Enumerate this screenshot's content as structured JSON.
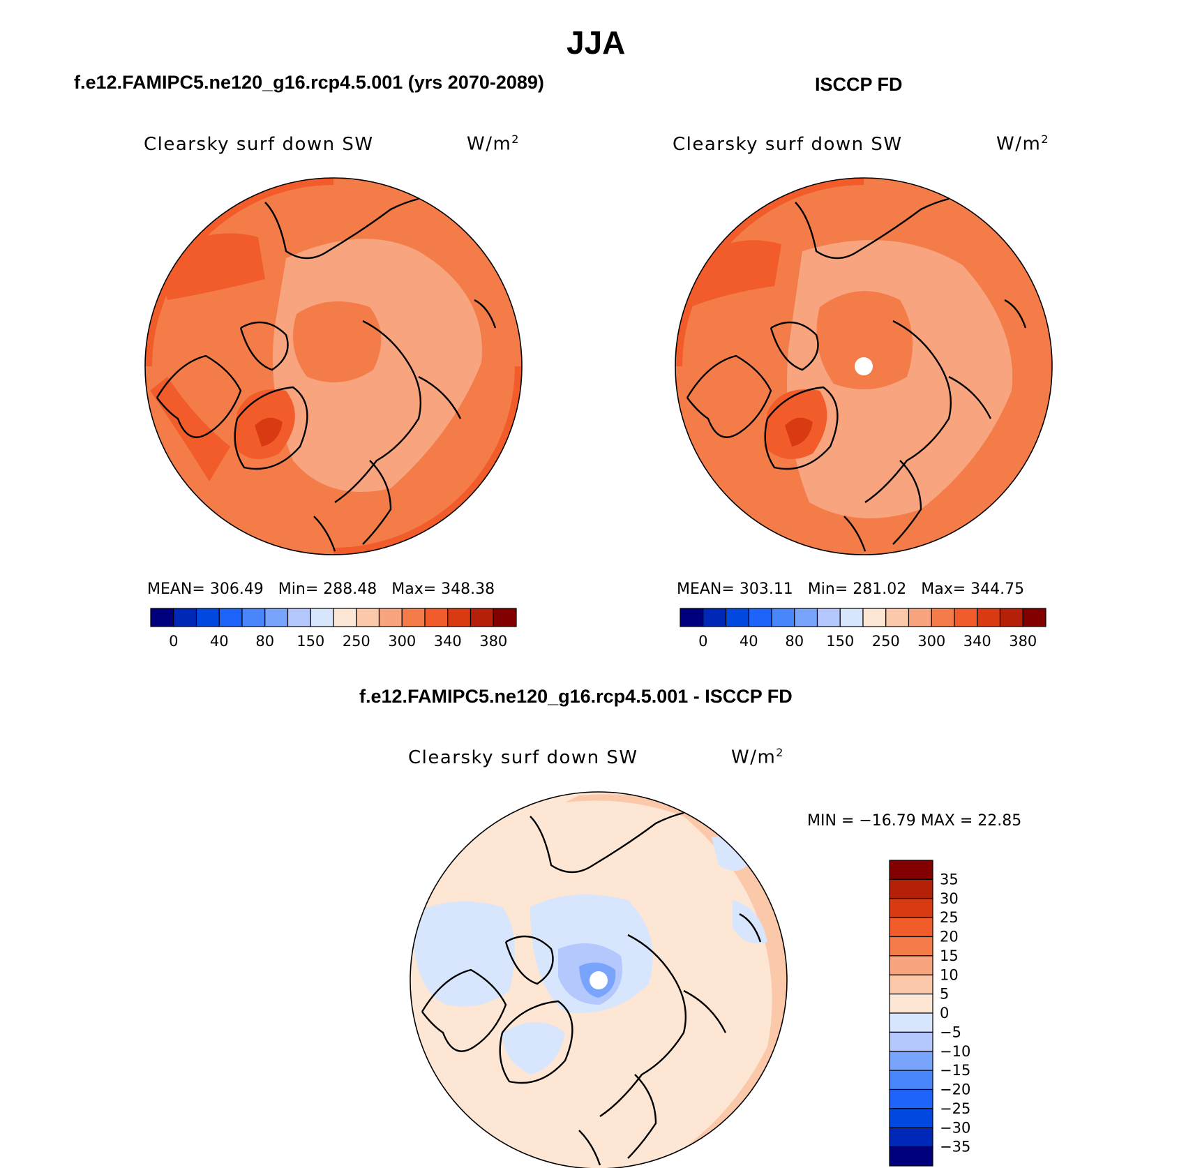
{
  "figure_title": "JJA",
  "panels": {
    "model": {
      "title": "f.e12.FAMIPC5.ne120_g16.rcp4.5.001 (yrs 2070-2089)",
      "variable": "Clearsky surf down SW",
      "units": "W/m",
      "units_sup": "2",
      "stats": {
        "mean_label": "MEAN=",
        "mean": "306.49",
        "min_label": "Min=",
        "min": "288.48",
        "max_label": "Max=",
        "max": "348.38"
      }
    },
    "obs": {
      "title": "ISCCP FD",
      "variable": "Clearsky surf down SW",
      "units": "W/m",
      "units_sup": "2",
      "stats": {
        "mean_label": "MEAN=",
        "mean": "303.11",
        "min_label": "Min=",
        "min": "281.02",
        "max_label": "Max=",
        "max": "344.75"
      }
    },
    "diff": {
      "title": "f.e12.FAMIPC5.ne120_g16.rcp4.5.001 - ISCCP FD",
      "variable": "Clearsky surf down SW",
      "units": "W/m",
      "units_sup": "2",
      "stats_text": "MIN = −16.79 MAX =  22.85"
    }
  },
  "chart_data": [
    {
      "type": "heatmap",
      "projection": "north-polar-stereographic",
      "title": "f.e12.FAMIPC5.ne120_g16.rcp4.5.001 (yrs 2070-2089)",
      "variable": "Clearsky surf down SW",
      "units": "W/m^2",
      "mean": 306.49,
      "min": 288.48,
      "max": 348.38,
      "colorbar": {
        "orientation": "horizontal",
        "levels": [
          0,
          20,
          40,
          60,
          80,
          100,
          150,
          200,
          250,
          275,
          300,
          320,
          340,
          360,
          380
        ],
        "tick_labels": [
          "0",
          "40",
          "80",
          "150",
          "250",
          "300",
          "340",
          "380"
        ],
        "colors": [
          "#00007f",
          "#0028b8",
          "#0048e0",
          "#1e64fa",
          "#4a86fb",
          "#78a4fc",
          "#b4c8fd",
          "#d7e6fd",
          "#fde6d4",
          "#fbc8aa",
          "#f8a47e",
          "#f37c48",
          "#f15c2a",
          "#da3a12",
          "#b52008",
          "#830000"
        ]
      }
    },
    {
      "type": "heatmap",
      "projection": "north-polar-stereographic",
      "title": "ISCCP FD",
      "variable": "Clearsky surf down SW",
      "units": "W/m^2",
      "mean": 303.11,
      "min": 281.02,
      "max": 344.75,
      "colorbar": {
        "orientation": "horizontal",
        "levels": [
          0,
          20,
          40,
          60,
          80,
          100,
          150,
          200,
          250,
          275,
          300,
          320,
          340,
          360,
          380
        ],
        "tick_labels": [
          "0",
          "40",
          "80",
          "150",
          "250",
          "300",
          "340",
          "380"
        ],
        "colors": [
          "#00007f",
          "#0028b8",
          "#0048e0",
          "#1e64fa",
          "#4a86fb",
          "#78a4fc",
          "#b4c8fd",
          "#d7e6fd",
          "#fde6d4",
          "#fbc8aa",
          "#f8a47e",
          "#f37c48",
          "#f15c2a",
          "#da3a12",
          "#b52008",
          "#830000"
        ]
      }
    },
    {
      "type": "heatmap",
      "projection": "north-polar-stereographic",
      "title": "f.e12.FAMIPC5.ne120_g16.rcp4.5.001 - ISCCP FD",
      "variable": "Clearsky surf down SW",
      "units": "W/m^2",
      "min": -16.79,
      "max": 22.85,
      "colorbar": {
        "orientation": "vertical",
        "levels": [
          -35,
          -30,
          -25,
          -20,
          -15,
          -10,
          -5,
          0,
          5,
          10,
          15,
          20,
          25,
          30,
          35
        ],
        "tick_labels": [
          "35",
          "30",
          "25",
          "20",
          "15",
          "10",
          "5",
          "0",
          "−5",
          "−10",
          "−15",
          "−20",
          "−25",
          "−30",
          "−35"
        ],
        "colors": [
          "#830000",
          "#b52008",
          "#da3a12",
          "#f15c2a",
          "#f37c48",
          "#f8a47e",
          "#fbc8aa",
          "#fde6d4",
          "#d7e6fd",
          "#b4c8fd",
          "#78a4fc",
          "#4a86fb",
          "#1e64fa",
          "#0048e0",
          "#0028b8",
          "#00007f"
        ]
      }
    }
  ]
}
